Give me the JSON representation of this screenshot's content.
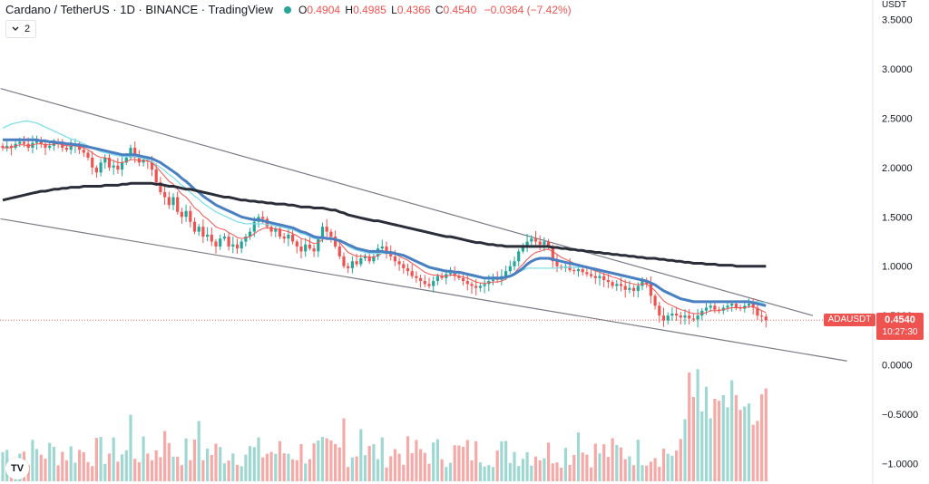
{
  "header": {
    "title": "Cardano / TetherUS · 1D · BINANCE · TradingView",
    "o_label": "O",
    "o_value": "0.4904",
    "h_label": "H",
    "h_value": "0.4985",
    "l_label": "L",
    "l_value": "0.4366",
    "c_label": "C",
    "c_value": "0.4540",
    "change": "−0.0364 (−7.42%)",
    "status_color": "#26a69a",
    "indicators_count": "2"
  },
  "axis": {
    "unit": "USDT",
    "ticks": [
      "3.5000",
      "3.0000",
      "2.5000",
      "2.0000",
      "1.5000",
      "1.0000",
      "0.5000",
      "0.0000",
      "−0.5000",
      "−1.0000"
    ],
    "tick_values": [
      3.5,
      3.0,
      2.5,
      2.0,
      1.5,
      1.0,
      0.5,
      0.0,
      -0.5,
      -1.0
    ]
  },
  "price_tag": {
    "symbol": "ADAUSDT",
    "price": "0.4540",
    "countdown": "10:27:30",
    "color": "#ef5350"
  },
  "logo": {
    "icon": "tradingview-logo-icon",
    "text": "TV"
  },
  "chart_data": {
    "type": "line",
    "ylim": [
      -1.15,
      3.6
    ],
    "candle_count": 180,
    "close": [
      2.2,
      2.22,
      2.2,
      2.24,
      2.26,
      2.24,
      2.2,
      2.25,
      2.28,
      2.24,
      2.2,
      2.22,
      2.26,
      2.24,
      2.2,
      2.18,
      2.22,
      2.24,
      2.18,
      2.15,
      2.1,
      2.0,
      1.95,
      2.05,
      2.1,
      2.0,
      2.02,
      1.98,
      2.05,
      2.1,
      2.2,
      2.1,
      2.05,
      2.08,
      2.06,
      1.98,
      1.85,
      1.75,
      1.7,
      1.62,
      1.7,
      1.55,
      1.5,
      1.56,
      1.45,
      1.35,
      1.4,
      1.3,
      1.32,
      1.25,
      1.2,
      1.28,
      1.3,
      1.2,
      1.22,
      1.18,
      1.25,
      1.3,
      1.35,
      1.45,
      1.5,
      1.48,
      1.4,
      1.35,
      1.38,
      1.3,
      1.28,
      1.32,
      1.25,
      1.2,
      1.15,
      1.22,
      1.18,
      1.15,
      1.28,
      1.4,
      1.35,
      1.3,
      1.2,
      1.1,
      1.0,
      0.98,
      1.05,
      1.02,
      1.08,
      1.1,
      1.05,
      1.1,
      1.18,
      1.2,
      1.15,
      1.1,
      1.05,
      1.02,
      0.98,
      0.95,
      0.9,
      0.88,
      0.85,
      0.82,
      0.8,
      0.85,
      0.9,
      0.88,
      0.92,
      0.95,
      0.9,
      0.88,
      0.85,
      0.82,
      0.8,
      0.78,
      0.8,
      0.82,
      0.85,
      0.88,
      0.86,
      0.9,
      0.95,
      1.0,
      1.05,
      1.15,
      1.2,
      1.25,
      1.28,
      1.25,
      1.22,
      1.25,
      1.2,
      1.05,
      1.0,
      0.98,
      1.0,
      0.96,
      0.95,
      0.97,
      0.94,
      0.92,
      0.9,
      0.88,
      0.9,
      0.86,
      0.84,
      0.8,
      0.82,
      0.8,
      0.76,
      0.78,
      0.75,
      0.8,
      0.85,
      0.82,
      0.7,
      0.6,
      0.5,
      0.45,
      0.5,
      0.52,
      0.5,
      0.48,
      0.5,
      0.47,
      0.46,
      0.5,
      0.55,
      0.58,
      0.6,
      0.56,
      0.55,
      0.58,
      0.6,
      0.62,
      0.58,
      0.57,
      0.6,
      0.62,
      0.58,
      0.5,
      0.49,
      0.454
    ],
    "series": [
      {
        "color": "#ef5350",
        "values": [
          2.2,
          2.2,
          2.2,
          2.22,
          2.23,
          2.23,
          2.22,
          2.23,
          2.24,
          2.24,
          2.23,
          2.23,
          2.24,
          2.24,
          2.23,
          2.22,
          2.22,
          2.22,
          2.21,
          2.2,
          2.18,
          2.15,
          2.12,
          2.1,
          2.1,
          2.08,
          2.07,
          2.05,
          2.05,
          2.06,
          2.08,
          2.08,
          2.07,
          2.07,
          2.07,
          2.05,
          2.01,
          1.96,
          1.91,
          1.86,
          1.83,
          1.78,
          1.73,
          1.7,
          1.65,
          1.59,
          1.56,
          1.51,
          1.48,
          1.44,
          1.4,
          1.38,
          1.37,
          1.34,
          1.32,
          1.29,
          1.28,
          1.29,
          1.3,
          1.33,
          1.36,
          1.38,
          1.39,
          1.38,
          1.38,
          1.37,
          1.36,
          1.35,
          1.33,
          1.31,
          1.28,
          1.27,
          1.25,
          1.23,
          1.24,
          1.27,
          1.29,
          1.29,
          1.28,
          1.24,
          1.19,
          1.14,
          1.12,
          1.1,
          1.1,
          1.1,
          1.09,
          1.09,
          1.11,
          1.13,
          1.13,
          1.13,
          1.12,
          1.1,
          1.08,
          1.06,
          1.03,
          1.0,
          0.97,
          0.94,
          0.92,
          0.91,
          0.91,
          0.9,
          0.9,
          0.91,
          0.91,
          0.9,
          0.89,
          0.88,
          0.86,
          0.84,
          0.83,
          0.83,
          0.83,
          0.84,
          0.84,
          0.85,
          0.87,
          0.9,
          0.93,
          0.98,
          1.02,
          1.07,
          1.11,
          1.14,
          1.15,
          1.17,
          1.17,
          1.15,
          1.12,
          1.09,
          1.07,
          1.05,
          1.03,
          1.02,
          1.0,
          0.99,
          0.97,
          0.95,
          0.94,
          0.92,
          0.91,
          0.89,
          0.88,
          0.86,
          0.84,
          0.83,
          0.82,
          0.81,
          0.82,
          0.82,
          0.79,
          0.75,
          0.7,
          0.65,
          0.62,
          0.6,
          0.58,
          0.56,
          0.55,
          0.53,
          0.52,
          0.52,
          0.52,
          0.53,
          0.55,
          0.55,
          0.55,
          0.56,
          0.57,
          0.58,
          0.58,
          0.58,
          0.58,
          0.59,
          0.59,
          0.57,
          0.55,
          0.53
        ]
      },
      {
        "color": "#80deea",
        "values": [
          2.4,
          2.42,
          2.44,
          2.45,
          2.46,
          2.47,
          2.47,
          2.46,
          2.45,
          2.43,
          2.41,
          2.39,
          2.37,
          2.35,
          2.33,
          2.31,
          2.29,
          2.28,
          2.26,
          2.24,
          2.22,
          2.2,
          2.18,
          2.16,
          2.15,
          2.14,
          2.13,
          2.12,
          2.11,
          2.11,
          2.11,
          2.11,
          2.1,
          2.09,
          2.08,
          2.06,
          2.03,
          2.0,
          1.97,
          1.93,
          1.9,
          1.86,
          1.82,
          1.79,
          1.75,
          1.71,
          1.68,
          1.64,
          1.61,
          1.58,
          1.55,
          1.53,
          1.51,
          1.49,
          1.47,
          1.45,
          1.44,
          1.43,
          1.43,
          1.43,
          1.43,
          1.43,
          1.42,
          1.42,
          1.41,
          1.4,
          1.39,
          1.38,
          1.37,
          1.35,
          1.33,
          1.32,
          1.3,
          1.28,
          1.28,
          1.28,
          1.28,
          1.28,
          1.27,
          1.25,
          1.23,
          1.2,
          1.18,
          1.16,
          1.15,
          1.14,
          1.13,
          1.13,
          1.13,
          1.13,
          1.13,
          1.13,
          1.12,
          1.11,
          1.1,
          1.08,
          1.06,
          1.04,
          1.02,
          1.0,
          0.98,
          0.97,
          0.96,
          0.95,
          0.94,
          0.94,
          0.93,
          0.93,
          0.92,
          0.91,
          0.9,
          0.89,
          0.88,
          0.87,
          0.87,
          0.87,
          0.87,
          0.87,
          0.88,
          0.89,
          0.91,
          0.94,
          0.96,
          0.98,
          0.98,
          0.98,
          0.98,
          0.98,
          0.98,
          0.98,
          0.98,
          0.99,
          0.99,
          0.99,
          0.99,
          0.99,
          0.99,
          0.98,
          0.97,
          0.96,
          0.95,
          0.94,
          0.93,
          0.92,
          0.91,
          0.9,
          0.89,
          0.88,
          0.87,
          0.86,
          0.86,
          0.86,
          0.84,
          0.82,
          0.79,
          0.76,
          0.74,
          0.72,
          0.7,
          0.68,
          0.67,
          0.66,
          0.65,
          0.64,
          0.64,
          0.64,
          0.64,
          0.64,
          0.64,
          0.64,
          0.64,
          0.64,
          0.64,
          0.64,
          0.64,
          0.64,
          0.64,
          0.64,
          0.63,
          0.63
        ]
      },
      {
        "color": "#4a7fc1",
        "values": [
          2.28,
          2.28,
          2.28,
          2.28,
          2.28,
          2.28,
          2.28,
          2.28,
          2.28,
          2.27,
          2.27,
          2.26,
          2.26,
          2.25,
          2.25,
          2.24,
          2.24,
          2.23,
          2.23,
          2.22,
          2.21,
          2.2,
          2.19,
          2.18,
          2.17,
          2.16,
          2.15,
          2.14,
          2.13,
          2.13,
          2.13,
          2.13,
          2.12,
          2.11,
          2.1,
          2.09,
          2.07,
          2.05,
          2.02,
          1.99,
          1.96,
          1.93,
          1.89,
          1.86,
          1.82,
          1.78,
          1.75,
          1.71,
          1.68,
          1.65,
          1.62,
          1.6,
          1.58,
          1.56,
          1.54,
          1.52,
          1.5,
          1.49,
          1.48,
          1.47,
          1.47,
          1.46,
          1.45,
          1.44,
          1.43,
          1.42,
          1.41,
          1.4,
          1.39,
          1.37,
          1.35,
          1.34,
          1.32,
          1.3,
          1.29,
          1.29,
          1.28,
          1.28,
          1.27,
          1.26,
          1.24,
          1.22,
          1.2,
          1.18,
          1.17,
          1.16,
          1.15,
          1.15,
          1.15,
          1.15,
          1.14,
          1.14,
          1.13,
          1.12,
          1.11,
          1.09,
          1.07,
          1.05,
          1.03,
          1.01,
          0.99,
          0.98,
          0.97,
          0.96,
          0.95,
          0.95,
          0.94,
          0.94,
          0.93,
          0.92,
          0.91,
          0.9,
          0.89,
          0.88,
          0.88,
          0.88,
          0.88,
          0.88,
          0.89,
          0.9,
          0.92,
          0.95,
          0.98,
          1.02,
          1.05,
          1.07,
          1.08,
          1.08,
          1.08,
          1.07,
          1.06,
          1.05,
          1.04,
          1.03,
          1.02,
          1.01,
          1.0,
          0.99,
          0.98,
          0.97,
          0.96,
          0.95,
          0.94,
          0.93,
          0.92,
          0.91,
          0.9,
          0.89,
          0.88,
          0.87,
          0.86,
          0.85,
          0.83,
          0.81,
          0.78,
          0.75,
          0.73,
          0.71,
          0.69,
          0.67,
          0.66,
          0.65,
          0.64,
          0.64,
          0.64,
          0.64,
          0.64,
          0.64,
          0.64,
          0.64,
          0.64,
          0.64,
          0.64,
          0.64,
          0.64,
          0.64,
          0.63,
          0.62,
          0.61,
          0.6
        ]
      },
      {
        "color": "#2a2e39",
        "values": [
          1.67,
          1.68,
          1.69,
          1.7,
          1.71,
          1.72,
          1.73,
          1.74,
          1.75,
          1.76,
          1.76,
          1.77,
          1.78,
          1.78,
          1.79,
          1.79,
          1.8,
          1.8,
          1.8,
          1.81,
          1.81,
          1.81,
          1.81,
          1.81,
          1.82,
          1.82,
          1.82,
          1.82,
          1.83,
          1.83,
          1.84,
          1.84,
          1.84,
          1.84,
          1.84,
          1.84,
          1.83,
          1.83,
          1.82,
          1.81,
          1.81,
          1.8,
          1.79,
          1.78,
          1.78,
          1.77,
          1.76,
          1.75,
          1.74,
          1.73,
          1.72,
          1.71,
          1.7,
          1.7,
          1.69,
          1.68,
          1.67,
          1.67,
          1.66,
          1.66,
          1.65,
          1.65,
          1.64,
          1.64,
          1.63,
          1.63,
          1.63,
          1.62,
          1.62,
          1.61,
          1.6,
          1.6,
          1.6,
          1.59,
          1.59,
          1.59,
          1.58,
          1.57,
          1.57,
          1.55,
          1.54,
          1.52,
          1.51,
          1.5,
          1.49,
          1.48,
          1.47,
          1.46,
          1.46,
          1.45,
          1.44,
          1.43,
          1.42,
          1.41,
          1.4,
          1.39,
          1.38,
          1.37,
          1.36,
          1.35,
          1.34,
          1.33,
          1.32,
          1.31,
          1.3,
          1.3,
          1.29,
          1.28,
          1.27,
          1.26,
          1.25,
          1.24,
          1.24,
          1.23,
          1.22,
          1.22,
          1.21,
          1.21,
          1.2,
          1.2,
          1.2,
          1.2,
          1.2,
          1.2,
          1.2,
          1.2,
          1.2,
          1.2,
          1.2,
          1.19,
          1.19,
          1.18,
          1.18,
          1.17,
          1.17,
          1.16,
          1.16,
          1.15,
          1.15,
          1.14,
          1.14,
          1.13,
          1.13,
          1.12,
          1.12,
          1.11,
          1.11,
          1.1,
          1.1,
          1.09,
          1.09,
          1.08,
          1.08,
          1.08,
          1.07,
          1.07,
          1.06,
          1.06,
          1.05,
          1.05,
          1.04,
          1.04,
          1.03,
          1.03,
          1.03,
          1.02,
          1.02,
          1.02,
          1.01,
          1.01,
          1.01,
          1.01,
          1.0,
          1.0,
          1.0,
          1.0,
          1.0,
          1.0,
          1.0,
          1.0
        ]
      }
    ],
    "trendlines": [
      {
        "color": "#787b86",
        "x1": -0.5,
        "y1": 2.8,
        "x2": 190,
        "y2": 0.5
      },
      {
        "color": "#787b86",
        "x1": -0.5,
        "y1": 1.48,
        "x2": 198,
        "y2": 0.04
      }
    ],
    "up_color": "#26a69a",
    "down_color": "#ef5350",
    "volume_seed": 7
  }
}
